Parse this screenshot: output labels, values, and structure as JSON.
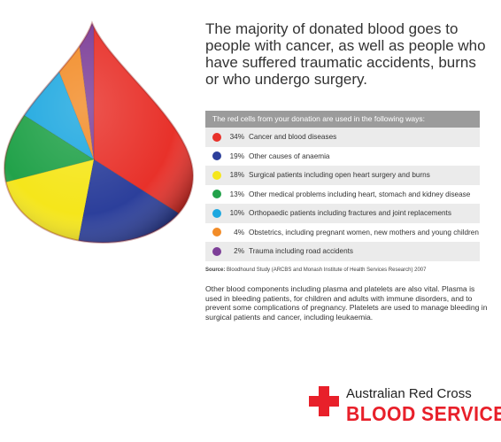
{
  "headline": "The majority of donated blood goes to people with cancer, as well as people who have suffered traumatic accidents, burns or who undergo surgery.",
  "table_header": "The red cells from your donation are used in the following ways:",
  "source_label": "Source:",
  "source_text": "Bloodhound Study (ARCBS and Monash Institute of Health Services Research) 2007",
  "paragraph": "Other blood components including plasma and platelets are also vital. Plasma is used in bleeding patients, for children and adults with immune disorders, and to prevent some complications of pregnancy. Platelets are used to manage bleeding in surgical patients and cancer, including leukaemia.",
  "logo": {
    "line1": "Australian Red Cross",
    "line2": "BLOOD SERVICE",
    "cross_color": "#e8202a"
  },
  "chart_data": {
    "type": "pie",
    "shape": "blood-drop",
    "categories": [
      "Cancer and blood diseases",
      "Other causes of anaemia",
      "Surgical patients including open heart surgery and burns",
      "Other medical problems including heart, stomach and kidney disease",
      "Orthopaedic patients including fractures and joint replacements",
      "Obstetrics, including pregnant women, new mothers and young children",
      "Trauma including road accidents"
    ],
    "labels": [
      "34%",
      "19%",
      "18%",
      "13%",
      "10%",
      "4%",
      "2%"
    ],
    "values": [
      34,
      19,
      18,
      13,
      10,
      4,
      2
    ],
    "colors": [
      "#e8312a",
      "#2c3f9b",
      "#f5e61b",
      "#22a24a",
      "#1ea8e0",
      "#f28c28",
      "#7d3f98"
    ]
  }
}
